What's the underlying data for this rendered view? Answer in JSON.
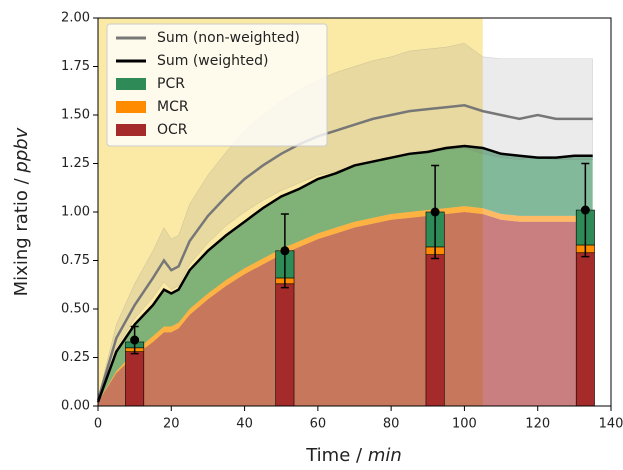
{
  "chart_data": {
    "type": "stacked_area",
    "xlabel_prefix": "Time /",
    "xlabel_unit": "min",
    "ylabel_prefix": "Mixing ratio /",
    "ylabel_unit": "ppbv",
    "xlim": [
      0,
      140
    ],
    "ylim": [
      0,
      2
    ],
    "xticks": [
      0,
      20,
      40,
      60,
      80,
      100,
      120,
      140
    ],
    "yticks": [
      {
        "value": 0,
        "label": "0.00"
      },
      {
        "value": 0.25,
        "label": "0.25"
      },
      {
        "value": 0.5,
        "label": "0.50"
      },
      {
        "value": 0.75,
        "label": "0.75"
      },
      {
        "value": 1,
        "label": "1.00"
      },
      {
        "value": 1.25,
        "label": "1.25"
      },
      {
        "value": 1.5,
        "label": "1.50"
      },
      {
        "value": 1.75,
        "label": "1.75"
      },
      {
        "value": 2,
        "label": "2.00"
      }
    ],
    "shaded_x": [
      0,
      105
    ],
    "shade_color": "#fbeaa6",
    "legend": "upper left",
    "x": [
      0,
      5,
      10,
      15,
      18,
      20,
      22,
      25,
      30,
      35,
      40,
      45,
      50,
      55,
      60,
      65,
      70,
      75,
      80,
      85,
      90,
      95,
      100,
      105,
      110,
      115,
      120,
      125,
      130,
      135
    ],
    "series": [
      {
        "name": "Sum (non-weighted)",
        "color": "#777777",
        "values": [
          0.03,
          0.35,
          0.52,
          0.66,
          0.75,
          0.7,
          0.72,
          0.85,
          0.98,
          1.08,
          1.17,
          1.24,
          1.3,
          1.35,
          1.39,
          1.42,
          1.45,
          1.48,
          1.5,
          1.52,
          1.53,
          1.54,
          1.55,
          1.52,
          1.5,
          1.48,
          1.5,
          1.48,
          1.48,
          1.48
        ],
        "upper": [
          0.04,
          0.42,
          0.63,
          0.8,
          0.92,
          0.86,
          0.88,
          1.04,
          1.19,
          1.31,
          1.42,
          1.5,
          1.57,
          1.63,
          1.68,
          1.72,
          1.75,
          1.78,
          1.8,
          1.83,
          1.84,
          1.85,
          1.87,
          1.8,
          1.79,
          1.79,
          1.79,
          1.79,
          1.79,
          1.79
        ],
        "lower": [
          0.02,
          0.3,
          0.45,
          0.56,
          0.64,
          0.6,
          0.62,
          0.73,
          0.84,
          0.93,
          1.0,
          1.06,
          1.11,
          1.15,
          1.19,
          1.21,
          1.24,
          1.26,
          1.28,
          1.3,
          1.31,
          1.32,
          1.33,
          1.3,
          1.28,
          1.27,
          1.28,
          1.27,
          1.27,
          1.27
        ]
      },
      {
        "name": "Sum (weighted)",
        "color": "#000000",
        "values": [
          0.02,
          0.28,
          0.42,
          0.52,
          0.6,
          0.58,
          0.6,
          0.7,
          0.8,
          0.88,
          0.95,
          1.02,
          1.08,
          1.12,
          1.17,
          1.2,
          1.24,
          1.26,
          1.28,
          1.3,
          1.31,
          1.33,
          1.34,
          1.33,
          1.3,
          1.29,
          1.28,
          1.28,
          1.29,
          1.29
        ]
      },
      {
        "name": "PCR",
        "color": "#2e8b57",
        "stack": true,
        "values": [
          0.0,
          0.1,
          0.14,
          0.16,
          0.19,
          0.17,
          0.17,
          0.2,
          0.22,
          0.23,
          0.24,
          0.26,
          0.27,
          0.27,
          0.28,
          0.28,
          0.29,
          0.29,
          0.29,
          0.3,
          0.3,
          0.31,
          0.31,
          0.31,
          0.31,
          0.31,
          0.3,
          0.3,
          0.31,
          0.31
        ]
      },
      {
        "name": "MCR",
        "color": "#ff8c00",
        "stack": true,
        "values": [
          0.0,
          0.01,
          0.02,
          0.03,
          0.03,
          0.03,
          0.03,
          0.03,
          0.03,
          0.03,
          0.03,
          0.03,
          0.03,
          0.03,
          0.03,
          0.03,
          0.03,
          0.03,
          0.03,
          0.03,
          0.03,
          0.03,
          0.03,
          0.03,
          0.03,
          0.03,
          0.03,
          0.03,
          0.03,
          0.03
        ]
      },
      {
        "name": "OCR",
        "color": "#a52a2a",
        "stack": true,
        "values": [
          0.02,
          0.17,
          0.26,
          0.33,
          0.38,
          0.38,
          0.4,
          0.47,
          0.55,
          0.62,
          0.68,
          0.73,
          0.78,
          0.82,
          0.86,
          0.89,
          0.92,
          0.94,
          0.96,
          0.97,
          0.98,
          0.99,
          1.0,
          0.99,
          0.96,
          0.95,
          0.95,
          0.95,
          0.95,
          0.95
        ]
      }
    ],
    "bars": {
      "x": [
        10,
        51,
        92,
        133
      ],
      "OCR": [
        0.28,
        0.63,
        0.78,
        0.79
      ],
      "MCR": [
        0.02,
        0.03,
        0.04,
        0.04
      ],
      "PCR": [
        0.03,
        0.14,
        0.18,
        0.18
      ],
      "total": [
        0.34,
        0.8,
        1.0,
        1.01
      ],
      "error": [
        0.07,
        0.19,
        0.24,
        0.24
      ]
    }
  }
}
